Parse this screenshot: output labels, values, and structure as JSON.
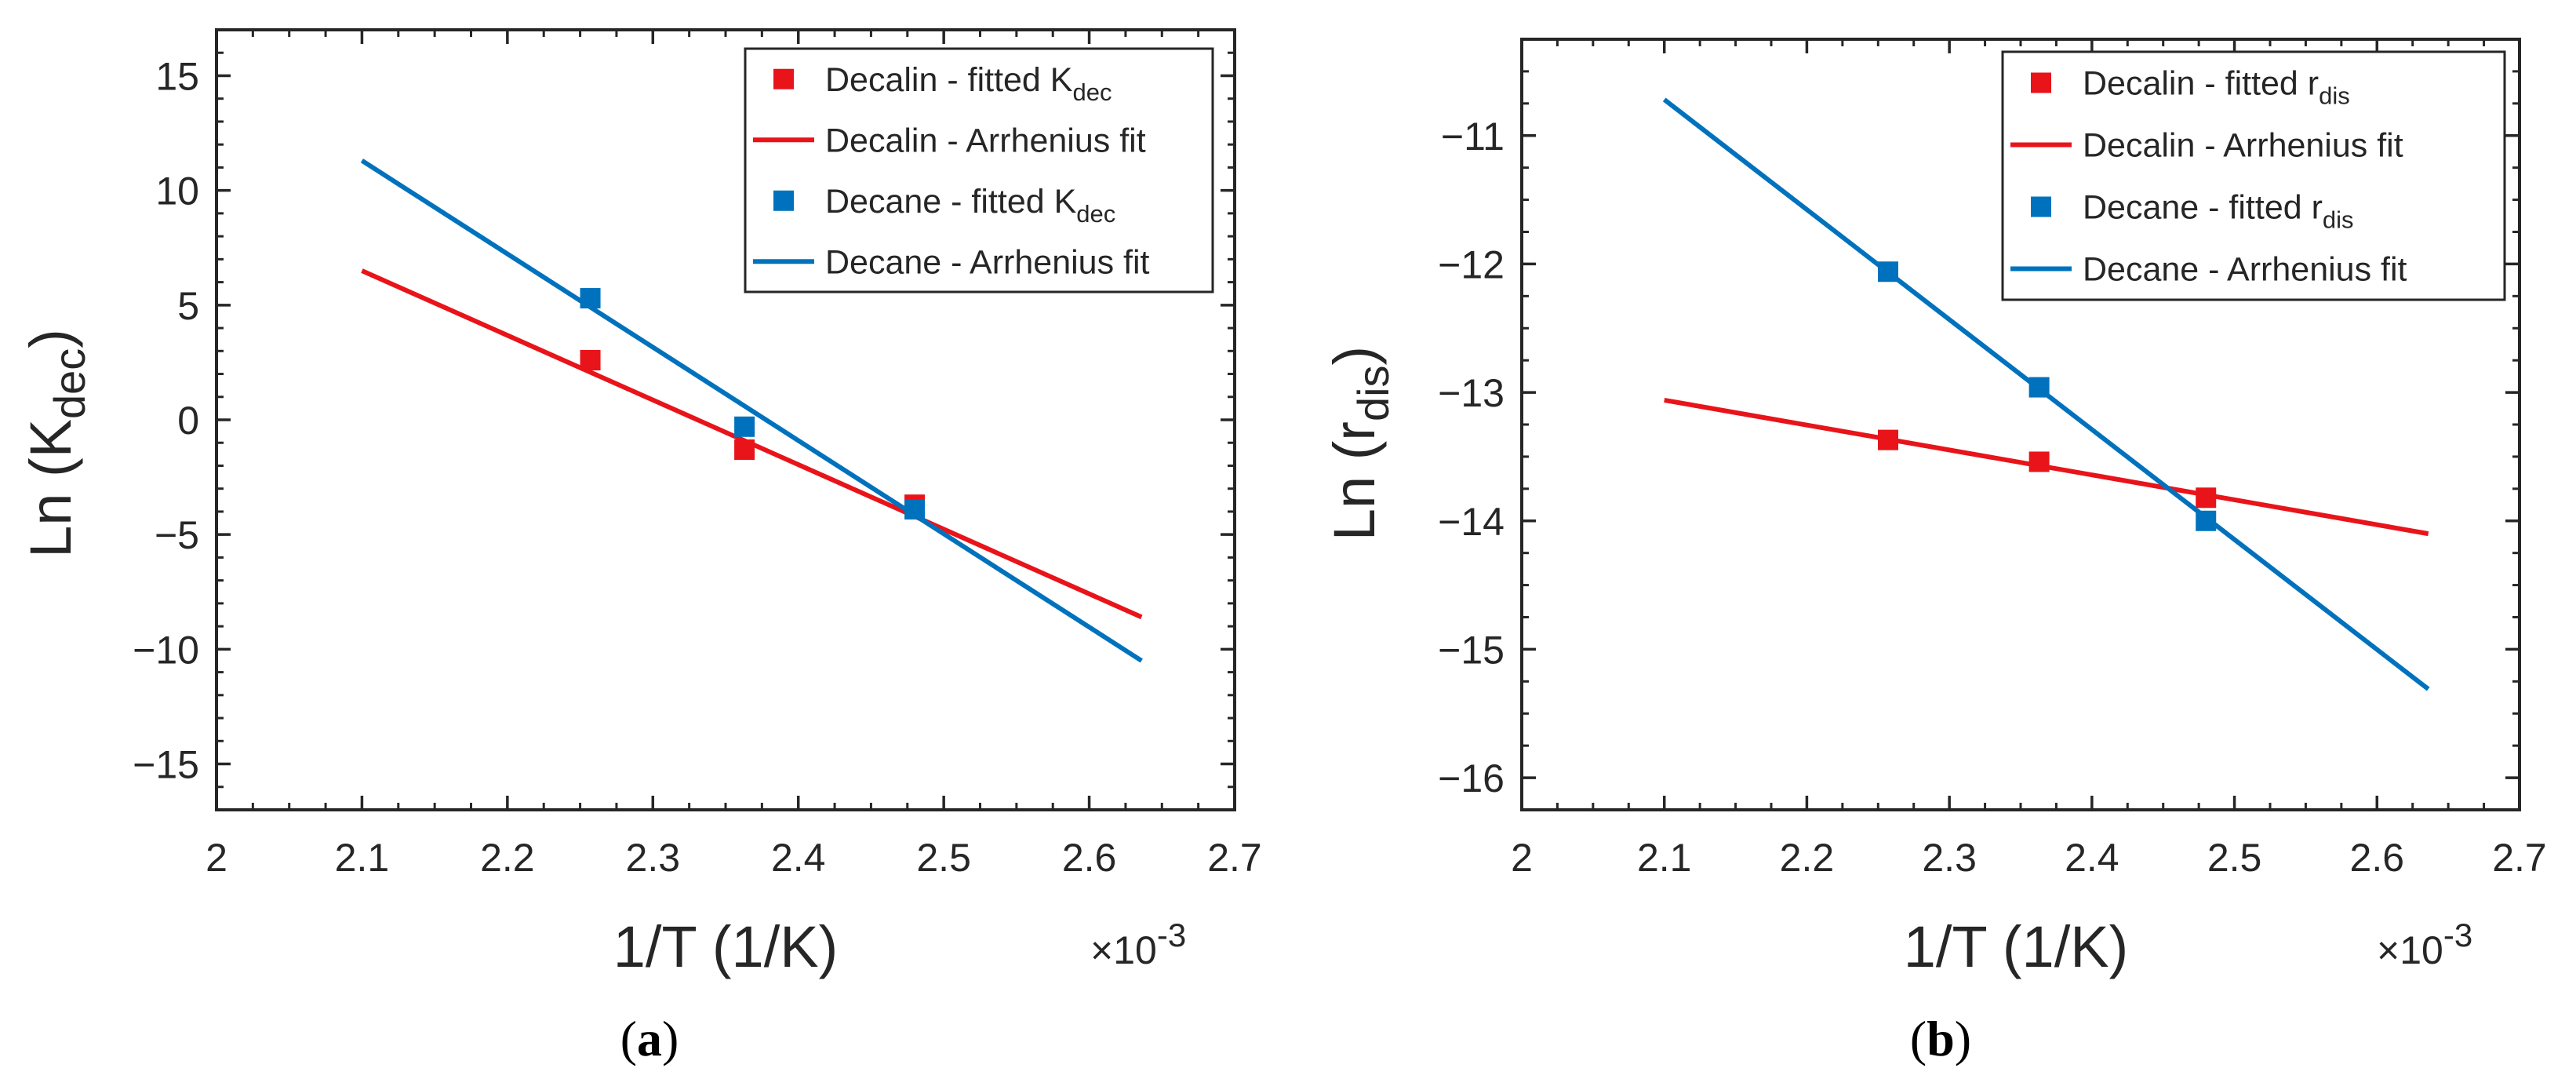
{
  "chart_data": [
    {
      "type": "line",
      "caption_paren_open": "(",
      "caption_letter": "a",
      "caption_paren_close": ")",
      "xlabel": "1/T (1/K)",
      "x_multiplier_symbol": "×10",
      "x_multiplier_exponent": "-3",
      "ylabel_main": "Ln (K",
      "ylabel_sub": "dec",
      "ylabel_close": ")",
      "xlim": [
        2.0,
        2.7
      ],
      "ylim": [
        -17,
        17
      ],
      "xticks": [
        2.0,
        2.1,
        2.2,
        2.3,
        2.4,
        2.5,
        2.6,
        2.7
      ],
      "xtick_labels": [
        "2",
        "2.1",
        "2.2",
        "2.3",
        "2.4",
        "2.5",
        "2.6",
        "2.7"
      ],
      "yticks": [
        15,
        10,
        5,
        0,
        -5,
        -10,
        -15
      ],
      "ytick_labels": [
        "15",
        "10",
        "5",
        "0",
        "−5",
        "−10",
        "−15"
      ],
      "legend_position": "top-right",
      "series": [
        {
          "name": "Decalin - fitted K",
          "name_sub": "dec",
          "kind": "scatter",
          "color": "#e8141a",
          "x": [
            2.257,
            2.363,
            2.48
          ],
          "y": [
            2.6,
            -1.3,
            -3.7
          ]
        },
        {
          "name": "Decalin - Arrhenius fit",
          "name_sub": "",
          "kind": "line",
          "color": "#e8141a",
          "x": [
            2.1,
            2.636
          ],
          "y": [
            6.5,
            -8.6
          ]
        },
        {
          "name": "Decane - fitted K",
          "name_sub": "dec",
          "kind": "scatter",
          "color": "#0072bd",
          "x": [
            2.257,
            2.363,
            2.48
          ],
          "y": [
            5.3,
            -0.3,
            -3.9
          ]
        },
        {
          "name": "Decane - Arrhenius fit",
          "name_sub": "",
          "kind": "line",
          "color": "#0072bd",
          "x": [
            2.1,
            2.636
          ],
          "y": [
            11.3,
            -10.5
          ]
        }
      ]
    },
    {
      "type": "line",
      "caption_paren_open": "(",
      "caption_letter": "b",
      "caption_paren_close": ")",
      "xlabel": "1/T (1/K)",
      "x_multiplier_symbol": "×10",
      "x_multiplier_exponent": "-3",
      "ylabel_main": "Ln (r",
      "ylabel_sub": "dis",
      "ylabel_close": ")",
      "xlim": [
        2.0,
        2.7
      ],
      "ylim": [
        -16.25,
        -10.25
      ],
      "xticks": [
        2.0,
        2.1,
        2.2,
        2.3,
        2.4,
        2.5,
        2.6,
        2.7
      ],
      "xtick_labels": [
        "2",
        "2.1",
        "2.2",
        "2.3",
        "2.4",
        "2.5",
        "2.6",
        "2.7"
      ],
      "yticks": [
        -11,
        -12,
        -13,
        -14,
        -15,
        -16
      ],
      "ytick_labels": [
        "−11",
        "−12",
        "−13",
        "−14",
        "−15",
        "−16"
      ],
      "legend_position": "top-right",
      "series": [
        {
          "name": "Decalin - fitted r",
          "name_sub": "dis",
          "kind": "scatter",
          "color": "#e8141a",
          "x": [
            2.257,
            2.363,
            2.48
          ],
          "y": [
            -13.37,
            -13.54,
            -13.82
          ]
        },
        {
          "name": "Decalin - Arrhenius fit",
          "name_sub": "",
          "kind": "line",
          "color": "#e8141a",
          "x": [
            2.1,
            2.636
          ],
          "y": [
            -13.06,
            -14.1
          ]
        },
        {
          "name": "Decane - fitted r",
          "name_sub": "dis",
          "kind": "scatter",
          "color": "#0072bd",
          "x": [
            2.257,
            2.363,
            2.48
          ],
          "y": [
            -12.06,
            -12.96,
            -14.0
          ]
        },
        {
          "name": "Decane - Arrhenius fit",
          "name_sub": "",
          "kind": "line",
          "color": "#0072bd",
          "x": [
            2.1,
            2.636
          ],
          "y": [
            -10.72,
            -15.31
          ]
        }
      ]
    }
  ]
}
